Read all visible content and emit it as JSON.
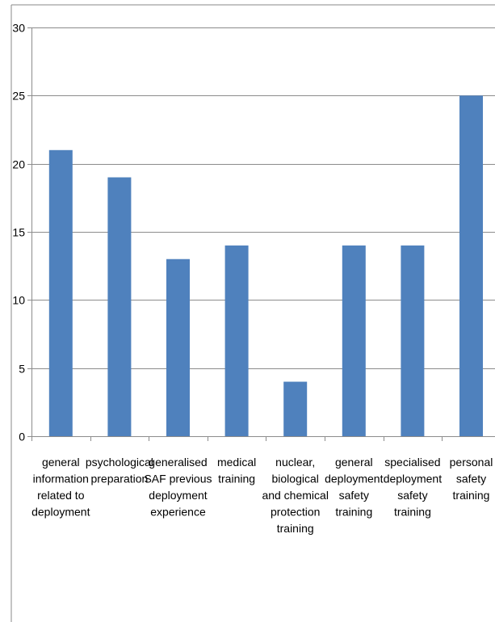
{
  "chart_data": {
    "type": "bar",
    "title": "",
    "xlabel": "",
    "ylabel": "",
    "ylim": [
      0,
      30
    ],
    "yticks": [
      0,
      5,
      10,
      15,
      20,
      25,
      30
    ],
    "grid": true,
    "legend": "none",
    "bar_color": "#4F81BD",
    "categories": [
      [
        "general",
        "information",
        "related to",
        "deployment"
      ],
      [
        "psychological",
        "preparation"
      ],
      [
        "generalised",
        "SAF previous",
        "deployment",
        "experience"
      ],
      [
        "medical",
        "training"
      ],
      [
        "nuclear,",
        "biological",
        "and chemical",
        "protection",
        "training"
      ],
      [
        "general",
        "deployment",
        "safety",
        "training"
      ],
      [
        "specialised",
        "deployment",
        "safety",
        "training"
      ],
      [
        "personal",
        "safety",
        "training"
      ]
    ],
    "values": [
      21,
      19,
      13,
      14,
      4,
      14,
      14,
      25
    ]
  }
}
